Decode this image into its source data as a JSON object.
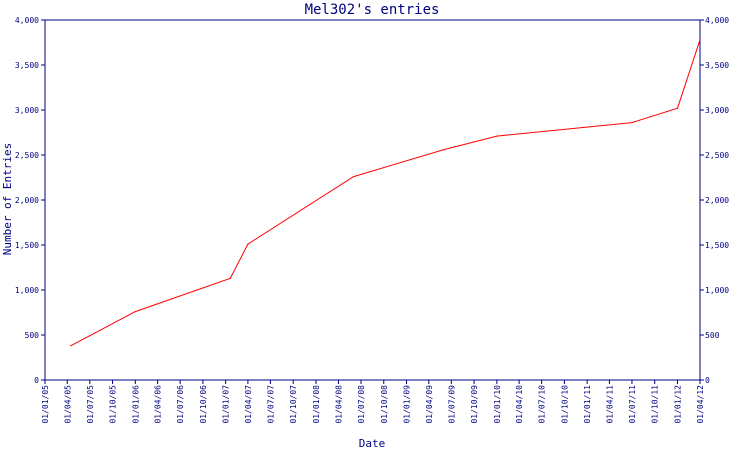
{
  "chart_data": {
    "type": "line",
    "title": "Mel302's entries",
    "xlabel": "Date",
    "ylabel": "Number of Entries",
    "ylim": [
      0,
      4000
    ],
    "y_ticks": [
      0,
      500,
      1000,
      1500,
      2000,
      2500,
      3000,
      3500,
      4000
    ],
    "y_tick_labels": [
      "0",
      "500",
      "1,000",
      "1,500",
      "2,000",
      "2,500",
      "3,000",
      "3,500",
      "4,000"
    ],
    "x_tick_labels": [
      "01/01/05",
      "01/04/05",
      "01/07/05",
      "01/10/05",
      "01/01/06",
      "01/04/06",
      "01/07/06",
      "01/10/06",
      "01/01/07",
      "01/04/07",
      "01/07/07",
      "01/10/07",
      "01/01/08",
      "01/04/08",
      "01/07/08",
      "01/10/08",
      "01/01/09",
      "01/04/09",
      "01/07/09",
      "01/10/09",
      "01/01/10",
      "01/04/10",
      "01/07/10",
      "01/10/10",
      "01/01/11",
      "01/04/11",
      "01/07/11",
      "01/10/11",
      "01/01/12",
      "01/04/12"
    ],
    "grid": false,
    "y_axis_both_sides": true,
    "series": [
      {
        "color": "#ff0000",
        "points": [
          {
            "x": "2005-04-15",
            "y": 380
          },
          {
            "x": "2006-01-01",
            "y": 760
          },
          {
            "x": "2007-01-20",
            "y": 1130
          },
          {
            "x": "2007-04-01",
            "y": 1510
          },
          {
            "x": "2008-06-01",
            "y": 2260
          },
          {
            "x": "2009-06-01",
            "y": 2560
          },
          {
            "x": "2010-01-01",
            "y": 2710
          },
          {
            "x": "2011-07-01",
            "y": 2860
          },
          {
            "x": "2012-01-01",
            "y": 3020
          },
          {
            "x": "2012-04-01",
            "y": 3780
          }
        ]
      }
    ],
    "colors": {
      "axis": "#000080",
      "text": "#000080",
      "line": "#ff0000",
      "background": "#ffffff"
    }
  }
}
